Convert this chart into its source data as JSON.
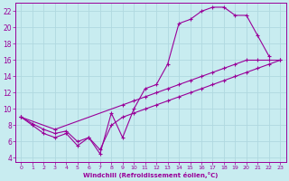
{
  "xlabel": "Windchill (Refroidissement éolien,°C)",
  "bg_color": "#c8ecf0",
  "line_color": "#990099",
  "grid_color": "#b0d8e0",
  "xlim": [
    -0.5,
    23.5
  ],
  "ylim": [
    3.5,
    23
  ],
  "yticks": [
    4,
    6,
    8,
    10,
    12,
    14,
    16,
    18,
    20,
    22
  ],
  "xticks": [
    0,
    1,
    2,
    3,
    4,
    5,
    6,
    7,
    8,
    9,
    10,
    11,
    12,
    13,
    14,
    15,
    16,
    17,
    18,
    19,
    20,
    21,
    22,
    23
  ],
  "line1_x": [
    0,
    1,
    2,
    3,
    4,
    5,
    6,
    7,
    8,
    9,
    10,
    11,
    12,
    13,
    14,
    15,
    16,
    17,
    18,
    19,
    20,
    21,
    22
  ],
  "line1_y": [
    9.0,
    8.0,
    7.0,
    6.5,
    7.0,
    5.5,
    6.5,
    4.5,
    9.5,
    6.5,
    10.0,
    12.5,
    13.0,
    15.5,
    20.5,
    21.0,
    22.0,
    22.5,
    22.5,
    21.5,
    21.5,
    19.0,
    16.5
  ],
  "line2_x": [
    0,
    1,
    2,
    3,
    4,
    5,
    6,
    7,
    8,
    9,
    10,
    11,
    12,
    13,
    14,
    15,
    16,
    17,
    18,
    19,
    20,
    21,
    22,
    23
  ],
  "line2_y": [
    9.0,
    8.2,
    7.5,
    7.0,
    7.3,
    6.0,
    6.5,
    5.0,
    8.0,
    9.0,
    9.5,
    10.0,
    10.5,
    11.0,
    11.5,
    12.0,
    12.5,
    13.0,
    13.5,
    14.0,
    14.5,
    15.0,
    15.5,
    16.0
  ],
  "line3_x": [
    0,
    3,
    9,
    10,
    11,
    12,
    13,
    14,
    15,
    16,
    17,
    18,
    19,
    20,
    21,
    22,
    23
  ],
  "line3_y": [
    9.0,
    7.5,
    10.5,
    11.0,
    11.5,
    12.0,
    12.5,
    13.0,
    13.5,
    14.0,
    14.5,
    15.0,
    15.5,
    16.0,
    16.0,
    16.0,
    16.0
  ]
}
